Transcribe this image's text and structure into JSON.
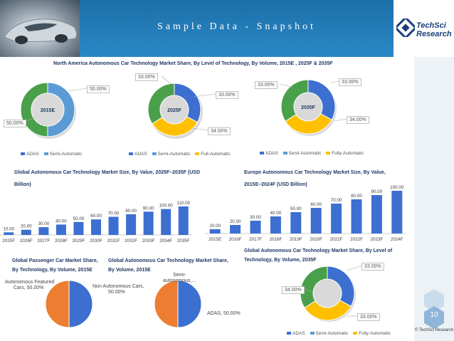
{
  "header": {
    "title": "Sample Data - Snapshot",
    "logo_line1": "TechSci",
    "logo_line2": "Research",
    "brand_color": "#1f74b4"
  },
  "colors": {
    "adas": "#3d6fd1",
    "semi": "#5b9bd5",
    "full": "#ffc000",
    "semi_orange": "#ed7d31",
    "bar": "#3d6fd1",
    "fully_na": "#4aa04a"
  },
  "footer": {
    "page_number": "10",
    "copyright": "© TechSci Research"
  },
  "chart_data": [
    {
      "id": "na_2015",
      "type": "pie",
      "title": "North America Autonomous Car Technology Market Share, By Level of Technology, By Volume, 2015E , 2025F & 2035F",
      "center_label": "2015E",
      "slices": [
        {
          "name": "ADAS",
          "value": 50,
          "label": "50.00%"
        },
        {
          "name": "Semi-Automatic",
          "value": 50,
          "label": "50.00%"
        }
      ],
      "legend": [
        "ADAS",
        "Semi-Automatic"
      ]
    },
    {
      "id": "na_2025",
      "type": "pie",
      "center_label": "2025F",
      "slices": [
        {
          "name": "ADAS",
          "value": 33,
          "label": "33.00%"
        },
        {
          "name": "Semi-Automatic",
          "value": 33,
          "label": "33.00%"
        },
        {
          "name": "Full-Automatic",
          "value": 34,
          "label": "34.00%"
        }
      ],
      "legend": [
        "ADAS",
        "Semi-Automatic",
        "Full-Automatic"
      ]
    },
    {
      "id": "na_2035",
      "type": "pie",
      "center_label": "2035F",
      "slices": [
        {
          "name": "ADAS",
          "value": 33,
          "label": "33.00%"
        },
        {
          "name": "Semi-Automatic",
          "value": 33,
          "label": "33.00%"
        },
        {
          "name": "Fully-Automatic",
          "value": 34,
          "label": "34.00%"
        }
      ],
      "legend": [
        "ADAS",
        "Semi-Automatic",
        "Fully-Automatic"
      ]
    },
    {
      "id": "global_value",
      "type": "bar",
      "title_line1": "Global Autonomous Car Technology Market Size, By Value, 2025F–2035F (USD",
      "title_line2": "Billion)",
      "categories": [
        "2025F",
        "2026F",
        "2027F",
        "2028F",
        "2029F",
        "2030F",
        "2031F",
        "2032F",
        "2033F",
        "2034F",
        "2035F"
      ],
      "values": [
        10,
        20,
        30,
        40,
        50,
        60,
        70,
        80,
        90,
        100,
        110
      ],
      "labels": [
        "10.00",
        "20.00",
        "30.00",
        "40.00",
        "50.00",
        "60.00",
        "70.00",
        "80.00",
        "90.00",
        "100.00",
        "110.00"
      ],
      "ylim": [
        0,
        110
      ]
    },
    {
      "id": "europe_value",
      "type": "bar",
      "title_line1": "Europe Autonomous Car Technology Market Size, By Value,",
      "title_line2": "2015E–2024F (USD Billion)",
      "categories": [
        "2015E",
        "2016F",
        "2017F",
        "2018F",
        "2019F",
        "2020F",
        "2021F",
        "2022F",
        "2023F",
        "2024F"
      ],
      "values": [
        10,
        20,
        30,
        40,
        50,
        60,
        70,
        80,
        90,
        100
      ],
      "labels": [
        "10.00",
        "20.00",
        "30.00",
        "40.00",
        "50.00",
        "60.00",
        "70.00",
        "80.00",
        "90.00",
        "100.00"
      ],
      "ylim": [
        0,
        100
      ]
    },
    {
      "id": "global_passenger",
      "type": "pie",
      "title_line1": "Global Passenger Car Market Share,",
      "title_line2": "By Technology, By Volume, 2015E",
      "slices": [
        {
          "name": "Autonomous Featured Cars",
          "value": 50,
          "label_line1": "Autonomous Featured",
          "label_line2": "Cars, 50.00%"
        },
        {
          "name": "Non Autonomous Cars",
          "value": 50,
          "label_line1": "Non Autonomous Cars,",
          "label_line2": "50.00%"
        }
      ]
    },
    {
      "id": "global_volume_2015",
      "type": "pie",
      "title_line1": "Global Autonomous Car Technology Market Share,",
      "title_line2": "By Volume, 2015E",
      "slices": [
        {
          "name": "ADAS",
          "value": 50,
          "label_line1": "ADAS, 50.00%"
        },
        {
          "name": "Semi-autonomous",
          "value": 50,
          "label_line1": "Semi-",
          "label_line2": "autonomous,..."
        }
      ]
    },
    {
      "id": "global_2035",
      "type": "pie",
      "title_line1": "Global Autonomous Car Technology Market Share, By Level of",
      "title_line2": "Technology, By Volume, 2035F",
      "slices": [
        {
          "name": "ADAS",
          "value": 33,
          "label": "33.00%"
        },
        {
          "name": "Semi-Automatic",
          "value": 33,
          "label": "33.00%"
        },
        {
          "name": "Fully-Automatic",
          "value": 34,
          "label": "34.00%"
        }
      ],
      "legend": [
        "ADAS",
        "Semi-Automatic",
        "Fully-Automatic"
      ]
    }
  ]
}
